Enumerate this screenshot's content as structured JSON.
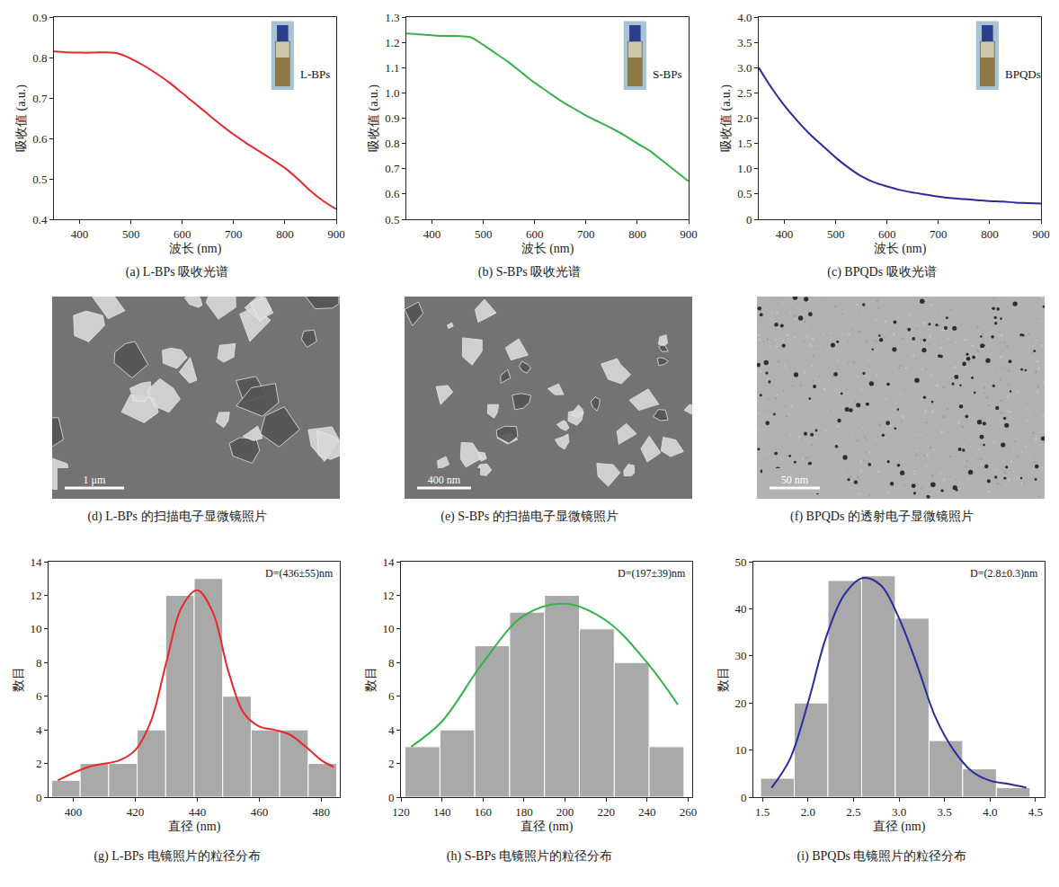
{
  "chart_data": [
    {
      "type": "line",
      "caption": "(a) L-BPs 吸收光谱",
      "inset_label": "L-BPs",
      "x_label": "波长 (nm)",
      "y_label": "吸收值 (a.u.)",
      "color": "#e8282a",
      "grid": false,
      "x": [
        350,
        375,
        400,
        425,
        450,
        475,
        500,
        525,
        550,
        575,
        600,
        625,
        650,
        675,
        700,
        725,
        750,
        775,
        800,
        825,
        850,
        875,
        900
      ],
      "values": [
        0.815,
        0.813,
        0.812,
        0.812,
        0.813,
        0.81,
        0.797,
        0.78,
        0.76,
        0.738,
        0.712,
        0.686,
        0.66,
        0.634,
        0.61,
        0.588,
        0.568,
        0.548,
        0.527,
        0.5,
        0.47,
        0.445,
        0.425
      ],
      "xlim": [
        350,
        900
      ],
      "xticks": [
        400,
        500,
        600,
        700,
        800,
        900
      ],
      "ylim": [
        0.4,
        0.9
      ],
      "yticks": [
        0.4,
        0.5,
        0.6,
        0.7,
        0.8,
        0.9
      ]
    },
    {
      "type": "line",
      "caption": "(b) S-BPs 吸收光谱",
      "inset_label": "S-BPs",
      "x_label": "波长 (nm)",
      "y_label": "吸收值 (a.u.)",
      "color": "#34b34a",
      "grid": false,
      "x": [
        350,
        375,
        400,
        425,
        450,
        475,
        500,
        525,
        550,
        575,
        600,
        625,
        650,
        675,
        700,
        725,
        750,
        775,
        800,
        825,
        850,
        875,
        900
      ],
      "values": [
        1.235,
        1.232,
        1.228,
        1.225,
        1.225,
        1.22,
        1.19,
        1.155,
        1.12,
        1.08,
        1.04,
        1.005,
        0.97,
        0.94,
        0.91,
        0.885,
        0.86,
        0.832,
        0.8,
        0.77,
        0.73,
        0.69,
        0.65
      ],
      "xlim": [
        350,
        900
      ],
      "xticks": [
        400,
        500,
        600,
        700,
        800,
        900
      ],
      "ylim": [
        0.5,
        1.3
      ],
      "yticks": [
        0.5,
        0.6,
        0.7,
        0.8,
        0.9,
        {
          "value": 1,
          "label": "1.0"
        },
        1.1,
        1.2,
        1.3
      ]
    },
    {
      "type": "line",
      "caption": "(c) BPQDs 吸收光谱",
      "inset_label": "BPQDs",
      "x_label": "波长 (nm)",
      "y_label": "吸收值 (a.u.)",
      "color": "#2b2b9e",
      "grid": false,
      "x": [
        350,
        375,
        400,
        425,
        450,
        475,
        500,
        525,
        550,
        575,
        600,
        625,
        650,
        675,
        700,
        725,
        750,
        775,
        800,
        825,
        850,
        875,
        900
      ],
      "values": [
        3.0,
        2.6,
        2.25,
        1.95,
        1.68,
        1.45,
        1.22,
        1.02,
        0.85,
        0.73,
        0.65,
        0.58,
        0.53,
        0.49,
        0.45,
        0.42,
        0.4,
        0.38,
        0.36,
        0.35,
        0.33,
        0.32,
        0.31
      ],
      "xlim": [
        350,
        900
      ],
      "xticks": [
        400,
        500,
        600,
        700,
        800,
        900
      ],
      "ylim": [
        0,
        4
      ],
      "yticks": [
        0,
        0.5,
        {
          "value": 1,
          "label": "1.0"
        },
        1.5,
        {
          "value": 2,
          "label": "2.0"
        },
        2.5,
        {
          "value": 3,
          "label": "3.0"
        },
        3.5,
        {
          "value": 4,
          "label": "4.0"
        }
      ]
    },
    {
      "type": "image",
      "caption": "(d) L-BPs 的扫描电子显微镜照片",
      "scale_bar": "1 μm"
    },
    {
      "type": "image",
      "caption": "(e) S-BPs 的扫描电子显微镜照片",
      "scale_bar": "400 nm"
    },
    {
      "type": "image",
      "caption": "(f) BPQDs 的透射电子显微镜照片",
      "scale_bar": "50 nm"
    },
    {
      "type": "histogram",
      "caption": "(g) L-BPs 电镜照片的粒径分布",
      "annotation": "D=(436±55)nm",
      "x_label": "直径 (nm)",
      "y_label": "数目",
      "color": "#a9a9a9",
      "grid": false,
      "bins": [
        393,
        402.2,
        411.4,
        420.6,
        429.8,
        439,
        448.2,
        457.4,
        466.6,
        475.8,
        485
      ],
      "counts": [
        1,
        2,
        2,
        4,
        12,
        13,
        6,
        4,
        4,
        2
      ],
      "fit": {
        "x": [
          395,
          405,
          415,
          420,
          425,
          430,
          435,
          440,
          445,
          450,
          455,
          460,
          465,
          470,
          475,
          480,
          484
        ],
        "values": [
          1.0,
          1.8,
          2.2,
          2.8,
          4.5,
          8,
          11.3,
          12.3,
          11,
          7.5,
          5,
          4.2,
          4,
          3.7,
          3,
          2.2,
          1.8
        ],
        "color": "#e8282a"
      },
      "xlim": [
        392,
        486
      ],
      "xticks": [
        400,
        420,
        440,
        460,
        480
      ],
      "ylim": [
        0,
        14
      ],
      "yticks": [
        0,
        2,
        4,
        6,
        8,
        10,
        12,
        14
      ]
    },
    {
      "type": "histogram",
      "caption": "(h) S-BPs 电镜照片的粒径分布",
      "annotation": "D=(197±39)nm",
      "x_label": "直径 (nm)",
      "y_label": "数目",
      "color": "#a9a9a9",
      "grid": false,
      "bins": [
        122,
        139,
        156,
        173,
        190,
        207,
        224,
        241,
        258
      ],
      "counts": [
        3,
        4,
        9,
        11,
        12,
        10,
        8,
        3
      ],
      "fit": {
        "x": [
          125,
          140,
          160,
          180,
          200,
          220,
          240,
          255
        ],
        "values": [
          3,
          4.5,
          8,
          10.8,
          11.5,
          10.5,
          8,
          5.5
        ],
        "color": "#34b34a"
      },
      "xlim": [
        120,
        262
      ],
      "xticks": [
        120,
        140,
        160,
        180,
        200,
        220,
        240,
        260
      ],
      "ylim": [
        0,
        14
      ],
      "yticks": [
        0,
        2,
        4,
        6,
        8,
        10,
        12,
        14
      ]
    },
    {
      "type": "histogram",
      "caption": "(i) BPQDs 电镜照片的粒径分布",
      "annotation": "D=(2.8±0.3)nm",
      "x_label": "直径 (nm)",
      "y_label": "数目",
      "color": "#a9a9a9",
      "grid": false,
      "bins": [
        1.48,
        1.85,
        2.22,
        2.59,
        2.96,
        3.33,
        3.7,
        4.07,
        4.44
      ],
      "counts": [
        4,
        20,
        46,
        47,
        38,
        12,
        6,
        2
      ],
      "fit": {
        "x": [
          1.6,
          1.8,
          2.0,
          2.2,
          2.4,
          2.6,
          2.8,
          3.0,
          3.2,
          3.4,
          3.6,
          3.8,
          4.0,
          4.2,
          4.4
        ],
        "values": [
          2,
          8,
          20,
          34,
          43,
          46.5,
          45,
          38,
          28,
          17,
          10,
          5.5,
          3.5,
          2.8,
          2
        ],
        "color": "#2b2b9e"
      },
      "xlim": [
        1.4,
        4.6
      ],
      "xticks": [
        1.5,
        {
          "value": 2,
          "label": "2.0"
        },
        2.5,
        {
          "value": 3,
          "label": "3.0"
        },
        3.5,
        {
          "value": 4,
          "label": "4.0"
        },
        4.5
      ],
      "ylim": [
        0,
        50
      ],
      "yticks": [
        0,
        10,
        20,
        30,
        40,
        50
      ]
    }
  ]
}
